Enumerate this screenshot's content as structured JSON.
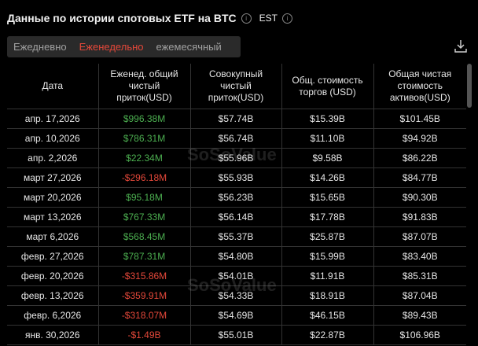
{
  "header": {
    "title": "Данные по истории спотовых ETF на BTC",
    "timezone": "EST"
  },
  "tabs": [
    {
      "label": "Ежедневно",
      "active": false
    },
    {
      "label": "Еженедельно",
      "active": true
    },
    {
      "label": "ежемесячный",
      "active": false
    }
  ],
  "colors": {
    "accent": "#e5483a",
    "positive": "#4caf50",
    "negative": "#e5483a"
  },
  "watermark": "SoSoValue",
  "table": {
    "columns": [
      "Дата",
      "Еженед. общий чистый приток(USD)",
      "Совокупный чистый приток(USD)",
      "Общ. стоимость торгов (USD)",
      "Общая чистая стоимость активов(USD)"
    ],
    "rows": [
      [
        "апр. 17,2026",
        "$996.38M",
        "$57.74B",
        "$15.39B",
        "$101.45B"
      ],
      [
        "апр. 10,2026",
        "$786.31M",
        "$56.74B",
        "$11.10B",
        "$94.92B"
      ],
      [
        "апр. 2,2026",
        "$22.34M",
        "$55.96B",
        "$9.58B",
        "$86.22B"
      ],
      [
        "март 27,2026",
        "-$296.18M",
        "$55.93B",
        "$14.26B",
        "$84.77B"
      ],
      [
        "март 20,2026",
        "$95.18M",
        "$56.23B",
        "$15.65B",
        "$90.30B"
      ],
      [
        "март 13,2026",
        "$767.33M",
        "$56.14B",
        "$17.78B",
        "$91.83B"
      ],
      [
        "март 6,2026",
        "$568.45M",
        "$55.37B",
        "$25.87B",
        "$87.07B"
      ],
      [
        "февр. 27,2026",
        "$787.31M",
        "$54.80B",
        "$15.99B",
        "$83.40B"
      ],
      [
        "февр. 20,2026",
        "-$315.86M",
        "$54.01B",
        "$11.91B",
        "$85.31B"
      ],
      [
        "февр. 13,2026",
        "-$359.91M",
        "$54.33B",
        "$18.91B",
        "$87.04B"
      ],
      [
        "февр. 6,2026",
        "-$318.07M",
        "$54.69B",
        "$46.15B",
        "$89.43B"
      ],
      [
        "янв. 30,2026",
        "-$1.49B",
        "$55.01B",
        "$22.87B",
        "$106.96B"
      ]
    ]
  }
}
